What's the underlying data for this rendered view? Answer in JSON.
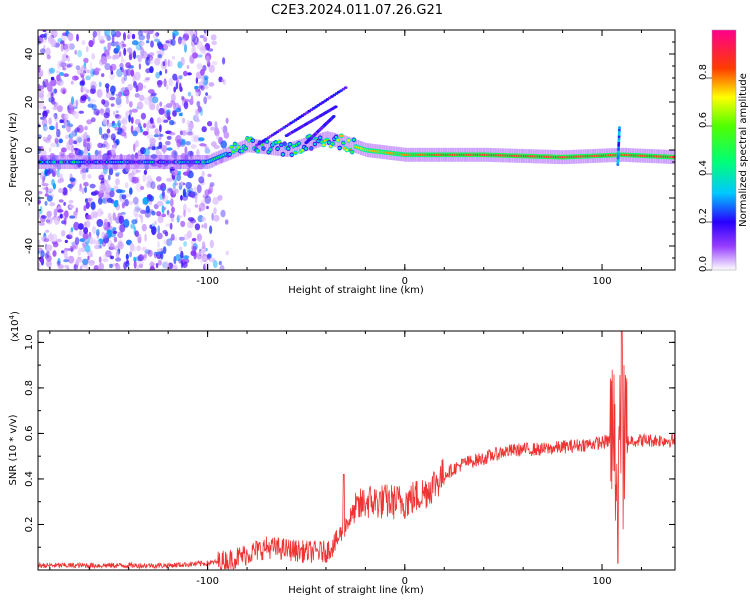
{
  "title": "C2E3.2024.011.07.26.G21",
  "chart_data": [
    {
      "type": "heatmap",
      "xlabel": "Height of straight line (km)",
      "ylabel": "Frequency (Hz)",
      "xlim": [
        -186,
        137
      ],
      "ylim": [
        -50,
        50
      ],
      "x_ticks": [
        -100,
        0,
        100
      ],
      "y_ticks": [
        -40,
        -20,
        0,
        20,
        40
      ],
      "colorbar": {
        "label": "Normalized spectral amplitude",
        "range": [
          0,
          1
        ],
        "ticks": [
          0.0,
          0.2,
          0.4,
          0.6,
          0.8
        ],
        "colormap": [
          "#ffffff",
          "#7f00ff",
          "#0000ff",
          "#00ffff",
          "#00ff00",
          "#ffff00",
          "#ff0000",
          "#ff00aa"
        ]
      },
      "main_track": [
        {
          "x": -186,
          "f": -5,
          "a": 0.45
        },
        {
          "x": -120,
          "f": -5,
          "a": 0.35
        },
        {
          "x": -100,
          "f": -5,
          "a": 0.45
        },
        {
          "x": -80,
          "f": 2,
          "a": 0.5
        },
        {
          "x": -60,
          "f": 0,
          "a": 0.5
        },
        {
          "x": -40,
          "f": 5,
          "a": 0.55
        },
        {
          "x": -30,
          "f": 3,
          "a": 0.6
        },
        {
          "x": -20,
          "f": 0,
          "a": 0.75
        },
        {
          "x": 0,
          "f": -2,
          "a": 0.8
        },
        {
          "x": 40,
          "f": -2,
          "a": 0.9
        },
        {
          "x": 80,
          "f": -3,
          "a": 0.9
        },
        {
          "x": 110,
          "f": -2,
          "a": 0.85
        },
        {
          "x": 137,
          "f": -3,
          "a": 0.9
        }
      ]
    },
    {
      "type": "line",
      "xlabel": "Height of straight line (km)",
      "ylabel": "SNR (10 * v/v)",
      "y_multiplier": "(x10",
      "y_multiplier_exp": "4",
      "y_multiplier_close": ")",
      "xlim": [
        -186,
        137
      ],
      "ylim": [
        0,
        1.05
      ],
      "x_ticks": [
        -100,
        0,
        100
      ],
      "y_ticks": [
        0.2,
        0.4,
        0.6,
        0.8,
        1.0
      ],
      "y_tick_labels": [
        "0.2",
        "0.4",
        "0.6",
        "0.8",
        "1.0"
      ],
      "line_color": "#ee3333",
      "series": [
        {
          "x": [
            -186,
            -160,
            -120,
            -100,
            -90,
            -80,
            -70,
            -60,
            -50,
            -40,
            -35,
            -30,
            -25,
            -20,
            -10,
            0,
            10,
            15,
            20,
            30,
            40,
            50,
            60,
            70,
            80,
            90,
            100,
            105,
            108,
            110,
            112,
            115,
            120,
            130,
            137
          ],
          "y": [
            0.02,
            0.02,
            0.02,
            0.03,
            0.04,
            0.07,
            0.1,
            0.09,
            0.08,
            0.08,
            0.12,
            0.2,
            0.26,
            0.3,
            0.3,
            0.3,
            0.34,
            0.38,
            0.42,
            0.47,
            0.49,
            0.52,
            0.53,
            0.53,
            0.54,
            0.55,
            0.56,
            0.57,
            0.5,
            0.52,
            0.56,
            0.57,
            0.57,
            0.57,
            0.57
          ]
        }
      ]
    }
  ]
}
